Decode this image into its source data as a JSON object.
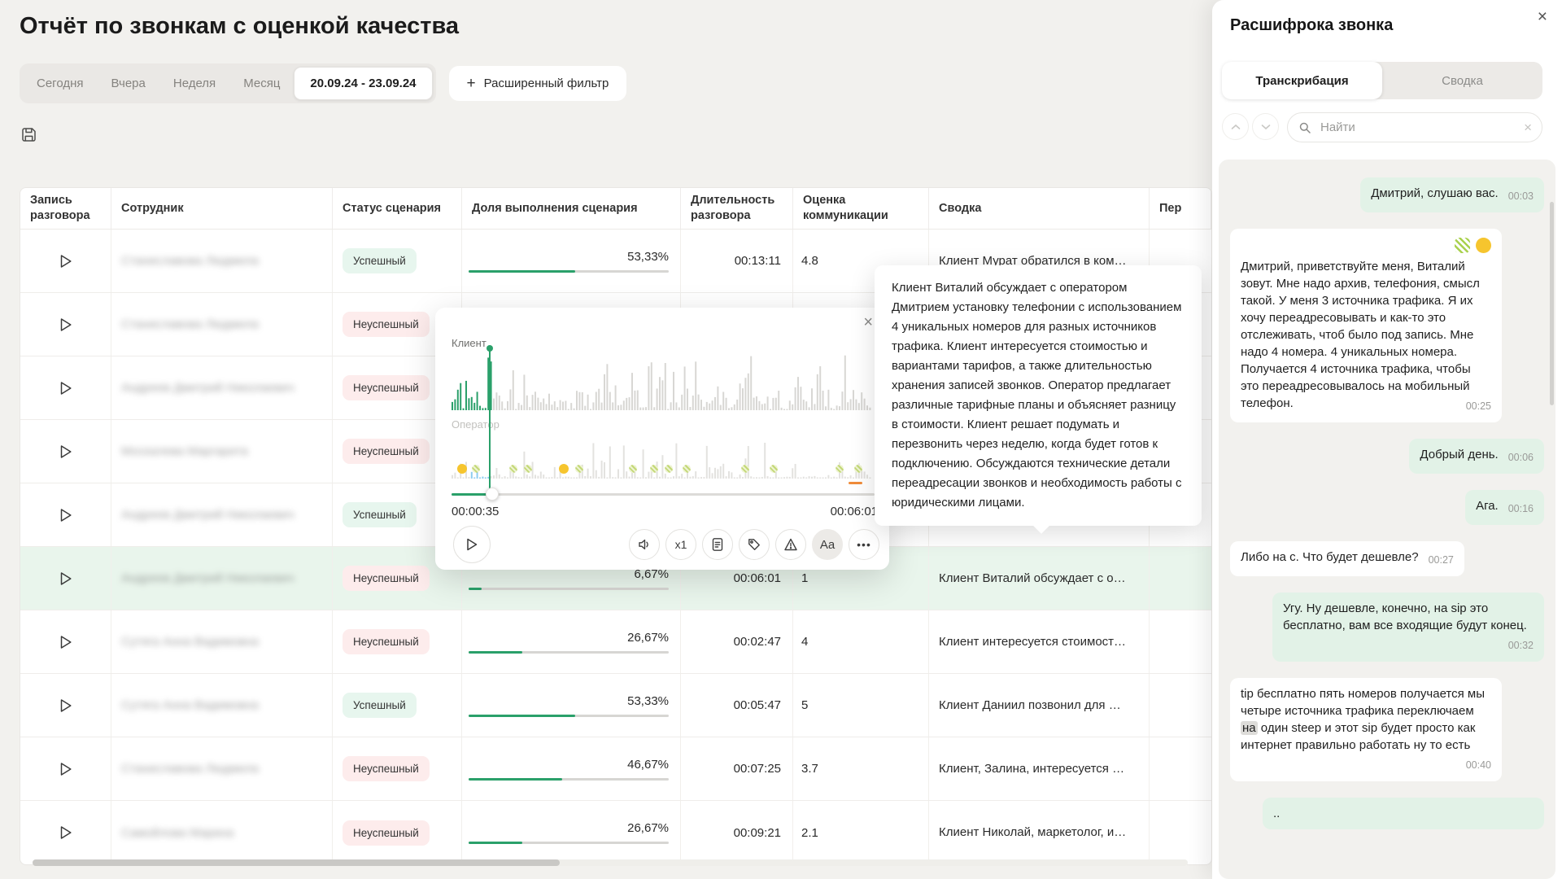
{
  "page": {
    "title": "Отчёт по звонкам с оценкой качества"
  },
  "filters": {
    "presets": [
      "Сегодня",
      "Вчера",
      "Неделя",
      "Месяц"
    ],
    "date_range": "20.09.24 - 23.09.24",
    "advanced_label": "Расширенный фильтр"
  },
  "table": {
    "columns": [
      "Запись разговора",
      "Сотрудник",
      "Статус сценария",
      "Доля выполнения сценария",
      "Длительность разговора",
      "Оценка коммуникации",
      "Сводка",
      "Пер"
    ],
    "rows": [
      {
        "employee": "Станиславова Людмила",
        "status": "Успешный",
        "status_type": "success",
        "percent": "53,33%",
        "percent_value": 53.33,
        "duration": "00:13:11",
        "score": "4.8",
        "summary": "Клиент Мурат обратился в ком…",
        "highlighted": false
      },
      {
        "employee": "Станиславова Людмила",
        "status": "Неуспешный",
        "status_type": "fail",
        "percent": "",
        "duration": "",
        "score": "",
        "summary": "",
        "highlighted": false
      },
      {
        "employee": "Андреев Дмитрий Николаевич",
        "status": "Неуспешный",
        "status_type": "fail",
        "percent": "",
        "duration": "",
        "score": "",
        "summary": "",
        "highlighted": false
      },
      {
        "employee": "Москалева Маргарита",
        "status": "Неуспешный",
        "status_type": "fail",
        "percent": "",
        "duration": "",
        "score": "",
        "summary": "",
        "highlighted": false
      },
      {
        "employee": "Андреев Дмитрий Николаевич",
        "status": "Успешный",
        "status_type": "success",
        "percent": "",
        "duration": "",
        "score": "",
        "summary": "",
        "highlighted": false
      },
      {
        "employee": "Андреев Дмитрий Николаевич",
        "status": "Неуспешный",
        "status_type": "fail",
        "percent": "6,67%",
        "percent_value": 6.67,
        "duration": "00:06:01",
        "score": "1",
        "summary": "Клиент Виталий обсуждает с о…",
        "highlighted": true
      },
      {
        "employee": "Сутяга Анна Вадимовна",
        "status": "Неуспешный",
        "status_type": "fail",
        "percent": "26,67%",
        "percent_value": 26.67,
        "duration": "00:02:47",
        "score": "4",
        "summary": "Клиент интересуется стоимост…",
        "highlighted": false
      },
      {
        "employee": "Сутяга Анна Вадимовна",
        "status": "Успешный",
        "status_type": "success",
        "percent": "53,33%",
        "percent_value": 53.33,
        "duration": "00:05:47",
        "score": "5",
        "summary": "Клиент Даниил позвонил для …",
        "highlighted": false
      },
      {
        "employee": "Станиславова Людмила",
        "status": "Неуспешный",
        "status_type": "fail",
        "percent": "46,67%",
        "percent_value": 46.67,
        "duration": "00:07:25",
        "score": "3.7",
        "summary": "Клиент, Залина, интересуется …",
        "highlighted": false
      },
      {
        "employee": "Самойлова Марина",
        "status": "Неуспешный",
        "status_type": "fail",
        "percent": "26,67%",
        "percent_value": 26.67,
        "duration": "00:09:21",
        "score": "2.1",
        "summary": "Клиент Николай, маркетолог, и…",
        "highlighted": false
      }
    ]
  },
  "player": {
    "client_label": "Клиент",
    "operator_label": "Оператор",
    "time_current": "00:00:35",
    "time_total": "00:06:01",
    "speed": "x1",
    "font_button": "Aa",
    "more_button": "•••",
    "close": "×"
  },
  "summary_popup": {
    "text": "Клиент Виталий обсуждает с оператором Дмитрием установку телефонии с использованием 4 уникальных номеров для разных источников трафика. Клиент интересуется стоимостью и вариантами тарифов, а также длительностью хранения записей звонков. Оператор предлагает различные тарифные планы и объясняет разницу в стоимости. Клиент решает подумать и перезвонить через неделю, когда будет готов к подключению. Обсуждаются технические детали переадресации звонков и необходимость работы с юридическими лицами."
  },
  "panel": {
    "title": "Расшифрока звонка",
    "close": "×",
    "tabs": [
      {
        "label": "Транскрибация",
        "active": true
      },
      {
        "label": "Сводка",
        "active": false
      }
    ],
    "search_placeholder": "Найти",
    "search_clear": "×",
    "messages": [
      {
        "side": "right",
        "p1": "Дмитрий, слушаю вас.",
        "p2": "",
        "p3": "",
        "time": "00:03"
      },
      {
        "side": "left",
        "icons": true,
        "p1": "Дмитрий, приветствуйте меня, Виталий зовут. Мне надо архив, телефония, смысл такой. У меня 3 источника трафика. Я их хочу переадресовывать и как-то это отслеживать, чтоб было под запись. Мне надо 4 номера. 4 уникальных номера. Получается 4 источника трафика, чтобы это переадресовывалось на мобильный телефон.",
        "p2": "",
        "p3": "",
        "time": "00:25"
      },
      {
        "side": "right",
        "p1": "Добрый день.",
        "p2": "",
        "p3": "",
        "time": "00:06"
      },
      {
        "side": "right",
        "p1": "Ага.",
        "p2": "",
        "p3": "",
        "time": "00:16"
      },
      {
        "side": "left",
        "p1": "Либо на с. Что будет дешевле?",
        "p2": "",
        "p3": "",
        "time": "00:27"
      },
      {
        "side": "right",
        "p1": "Угу. Ну дешевле, конечно, на sip это бесплатно, вам все входящие будут конец.",
        "p2": "",
        "p3": "",
        "time": "00:32"
      },
      {
        "side": "left",
        "p1": "tip бесплатно пять номеров получается мы четыре источника трафика переключаем ",
        "p2": "на",
        "p3": " один steep и этот sip будет просто как интернет правильно работать ну то есть",
        "time": "00:40"
      },
      {
        "side": "right",
        "wide": true,
        "p1": "..",
        "p2": "",
        "p3": "",
        "time": ""
      }
    ]
  }
}
